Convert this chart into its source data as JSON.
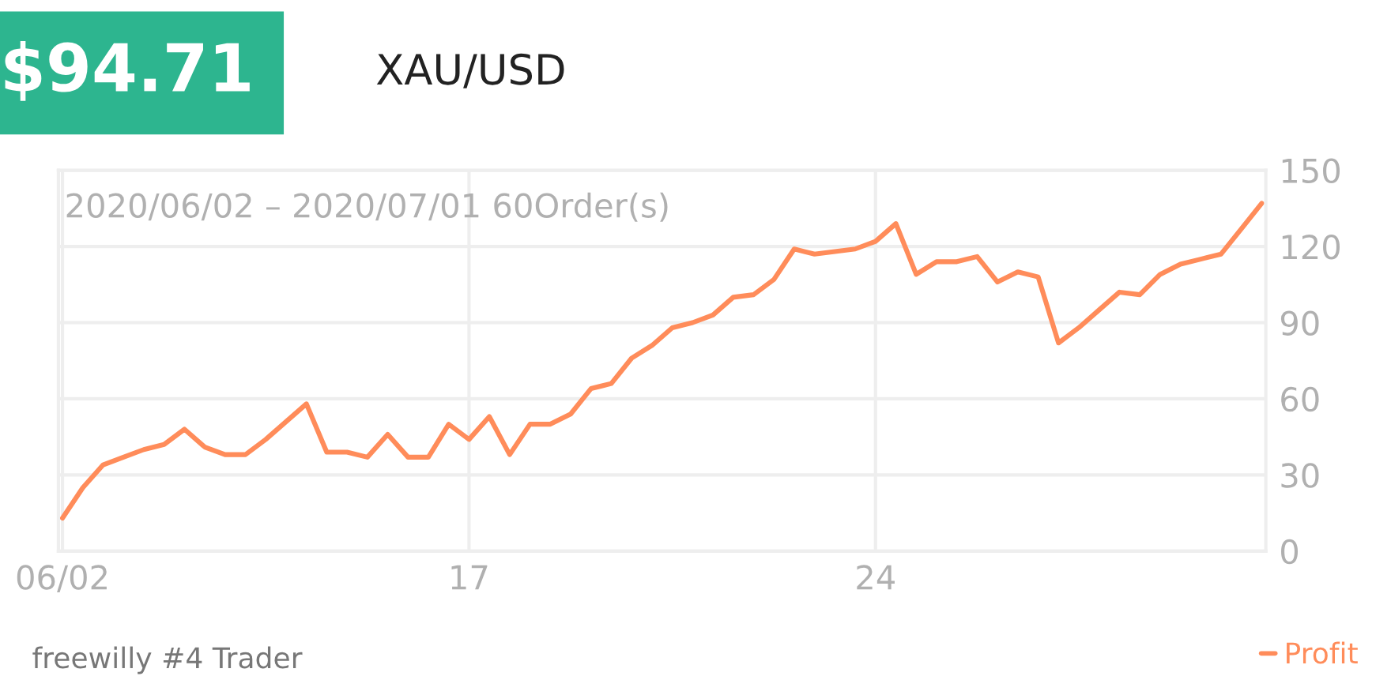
{
  "chart_data": {
    "type": "line",
    "title": "$94.71",
    "subtitle": "XAU/USD",
    "categories": [
      "06/02",
      null,
      null,
      null,
      null,
      null,
      null,
      null,
      null,
      null,
      null,
      null,
      null,
      null,
      null,
      null,
      null,
      null,
      null,
      null,
      "17",
      null,
      null,
      null,
      null,
      null,
      null,
      null,
      null,
      null,
      null,
      null,
      null,
      null,
      null,
      null,
      null,
      null,
      null,
      null,
      "24",
      null,
      null,
      null,
      null,
      null,
      null,
      null,
      null,
      null,
      null,
      null,
      null,
      null,
      null,
      null,
      null,
      null,
      null,
      null
    ],
    "series": [
      {
        "name": "Profit",
        "color": "#ff8c5a",
        "values": [
          13,
          25,
          34,
          37,
          40,
          42,
          48,
          41,
          38,
          38,
          44,
          51,
          58,
          39,
          39,
          37,
          46,
          37,
          37,
          50,
          44,
          53,
          38,
          50,
          50,
          54,
          64,
          66,
          76,
          81,
          88,
          90,
          93,
          100,
          101,
          107,
          119,
          117,
          118,
          119,
          122,
          129,
          109,
          114,
          114,
          116,
          106,
          110,
          108,
          82,
          88,
          95,
          102,
          101,
          109,
          113,
          115,
          117,
          127,
          137
        ]
      }
    ],
    "ylim": [
      0,
      150
    ],
    "yticks": [
      0,
      30,
      60,
      90,
      120,
      150
    ],
    "grid": true,
    "legend": "bottom right",
    "annotations": [
      "2020/06/02 – 2020/07/01 60Order(s)",
      "freewilly #4 Trader"
    ]
  }
}
